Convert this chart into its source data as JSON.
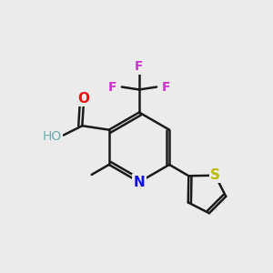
{
  "background_color": "#ebebeb",
  "bond_color": "#1a1a1a",
  "bond_width": 1.8,
  "atom_colors": {
    "N": "#1010ee",
    "O": "#ee1010",
    "H": "#6aadad",
    "F": "#cc33cc",
    "S": "#bbbb00",
    "C": "#1a1a1a"
  }
}
